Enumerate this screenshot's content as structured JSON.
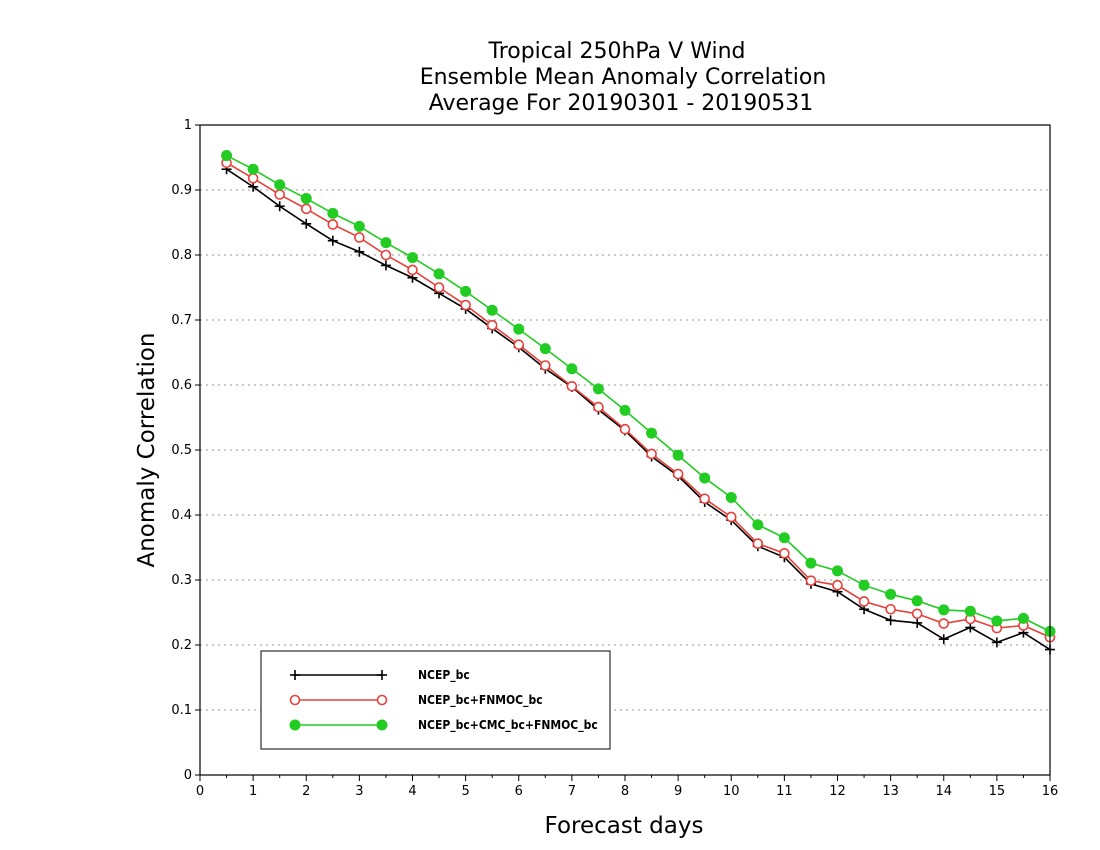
{
  "chart_data": {
    "type": "line",
    "title": [
      "Tropical 250hPa V Wind",
      "Ensemble Mean Anomaly Correlation",
      "Average For 20190301 - 20190531"
    ],
    "xlabel": "Forecast days",
    "ylabel": "Anomaly Correlation",
    "xlim": [
      0,
      16
    ],
    "ylim": [
      0,
      1
    ],
    "xticks": [
      0,
      1,
      2,
      3,
      4,
      5,
      6,
      7,
      8,
      9,
      10,
      11,
      12,
      13,
      14,
      15,
      16
    ],
    "yticks": [
      0,
      0.1,
      0.2,
      0.3,
      0.4,
      0.5,
      0.6,
      0.7,
      0.8,
      0.9,
      1
    ],
    "ytick_labels": [
      "0",
      "0.1",
      "0.2",
      "0.3",
      "0.4",
      "0.5",
      "0.6",
      "0.7",
      "0.8",
      "0.9",
      "1"
    ],
    "grid": "horizontal dotted",
    "legend_position": "bottom-left",
    "x": [
      0.5,
      1,
      1.5,
      2,
      2.5,
      3,
      3.5,
      4,
      4.5,
      5,
      5.5,
      6,
      6.5,
      7,
      7.5,
      8,
      8.5,
      9,
      9.5,
      10,
      10.5,
      11,
      11.5,
      12,
      12.5,
      13,
      13.5,
      14,
      14.5,
      15,
      15.5,
      16
    ],
    "series": [
      {
        "name": "NCEP_bc",
        "color": "#000000",
        "marker": "plus",
        "values": [
          0.932,
          0.905,
          0.875,
          0.848,
          0.822,
          0.805,
          0.784,
          0.765,
          0.741,
          0.717,
          0.687,
          0.658,
          0.625,
          0.597,
          0.562,
          0.53,
          0.49,
          0.46,
          0.42,
          0.392,
          0.352,
          0.335,
          0.294,
          0.282,
          0.255,
          0.238,
          0.234,
          0.209,
          0.227,
          0.204,
          0.219,
          0.193
        ]
      },
      {
        "name": "NCEP_bc+FNMOC_bc",
        "color": "#e8403a",
        "marker": "open-circle",
        "values": [
          0.942,
          0.918,
          0.893,
          0.871,
          0.847,
          0.827,
          0.8,
          0.777,
          0.75,
          0.723,
          0.692,
          0.662,
          0.63,
          0.598,
          0.566,
          0.532,
          0.494,
          0.463,
          0.425,
          0.397,
          0.356,
          0.341,
          0.299,
          0.292,
          0.267,
          0.255,
          0.248,
          0.233,
          0.24,
          0.226,
          0.23,
          0.212
        ]
      },
      {
        "name": "NCEP_bc+CMC_bc+FNMOC_bc",
        "color": "#22cc22",
        "marker": "filled-circle",
        "values": [
          0.953,
          0.932,
          0.908,
          0.887,
          0.864,
          0.844,
          0.819,
          0.796,
          0.771,
          0.744,
          0.715,
          0.686,
          0.656,
          0.625,
          0.594,
          0.561,
          0.526,
          0.492,
          0.457,
          0.427,
          0.385,
          0.365,
          0.326,
          0.314,
          0.292,
          0.278,
          0.268,
          0.254,
          0.252,
          0.237,
          0.241,
          0.221
        ]
      }
    ]
  }
}
